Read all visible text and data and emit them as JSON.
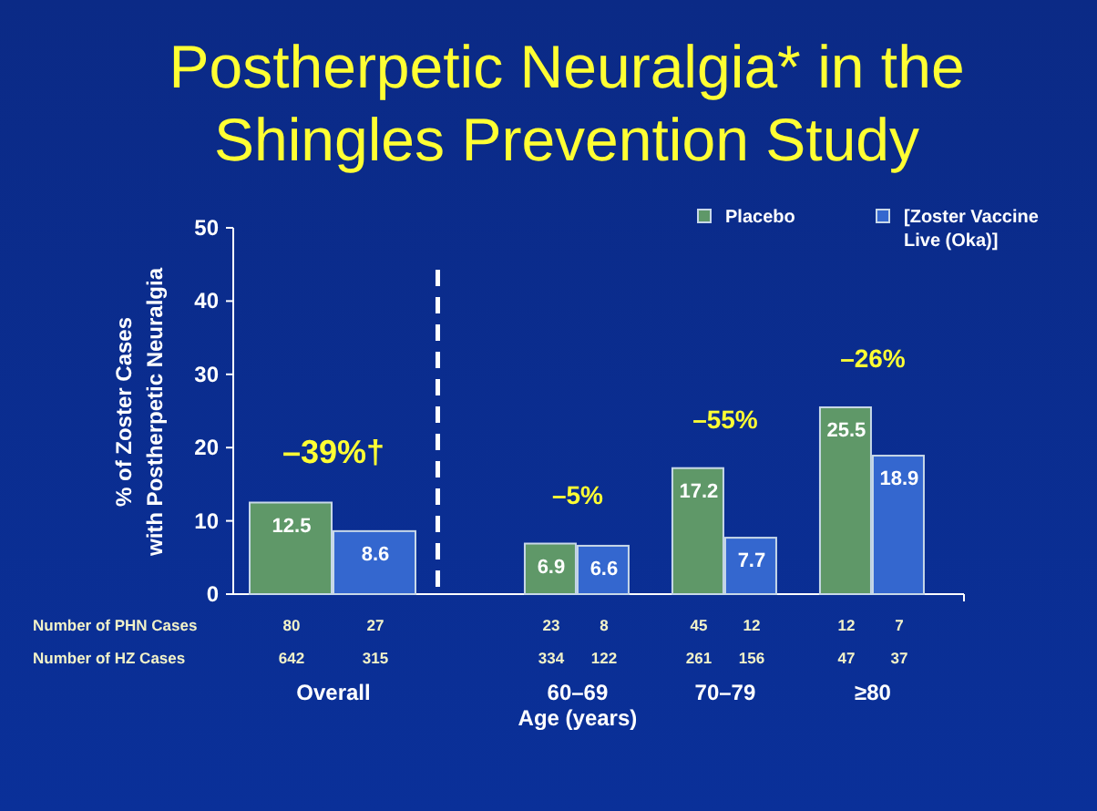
{
  "chart_data": {
    "type": "bar",
    "title": "Postherpetic Neuralgia* in the\nShingles Prevention Study",
    "ylabel": "% of Zoster Cases\nwith Postherpetic Neuralgia",
    "xlabel": "Age (years)",
    "categories": [
      "Overall",
      "60–69",
      "70–79",
      "≥80"
    ],
    "series": [
      {
        "name": "Placebo",
        "color": "#5f9868",
        "values": [
          12.5,
          6.9,
          17.2,
          25.5
        ]
      },
      {
        "name": "[Zoster Vaccine Live (Oka)]",
        "color": "#3467cf",
        "values": [
          8.6,
          6.6,
          7.7,
          18.9
        ]
      }
    ],
    "data_labels": true,
    "ylim": [
      0,
      50
    ],
    "yticks": [
      0,
      10,
      20,
      30,
      40,
      50
    ],
    "grid": false,
    "legend": "top right",
    "annotations": [
      "–39%†",
      "–5%",
      "–55%",
      "–26%",
      "Number of PHN Cases",
      "Number of HZ Cases",
      "80",
      "27",
      "23",
      "8",
      "45",
      "12",
      "12",
      "7",
      "642",
      "315",
      "334",
      "122",
      "261",
      "156",
      "47",
      "37"
    ]
  }
}
